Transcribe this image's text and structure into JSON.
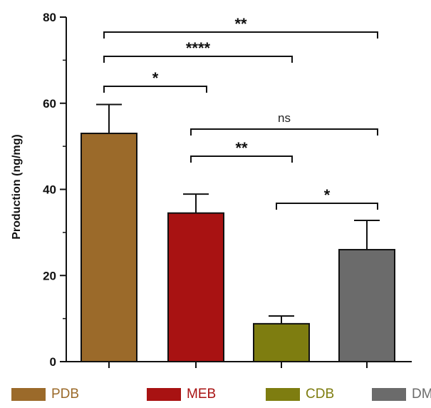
{
  "chart_data": {
    "type": "bar",
    "categories": [
      "PDB",
      "MEB",
      "CDB",
      "DM"
    ],
    "values": [
      53,
      34.5,
      8.8,
      26
    ],
    "errors": [
      6.7,
      4.4,
      1.8,
      6.8
    ],
    "colors": [
      "#9B6A2A",
      "#A81212",
      "#7E7D10",
      "#6B6B6B"
    ],
    "ylabel": "Production (ng/mg)",
    "xlabel": "",
    "title": "",
    "ylim": [
      0,
      80
    ],
    "yticks": [
      "0",
      "20",
      "40",
      "60",
      "80"
    ],
    "grid": false,
    "legend": "bottom",
    "significance": [
      {
        "from": 0,
        "to": 3,
        "label": "**",
        "level": 1
      },
      {
        "from": 0,
        "to": 2,
        "label": "****",
        "level": 2
      },
      {
        "from": 0,
        "to": 1,
        "label": "*",
        "level": 3
      },
      {
        "from": 1,
        "to": 3,
        "label": "ns",
        "level": 4
      },
      {
        "from": 1,
        "to": 2,
        "label": "**",
        "level": 5
      },
      {
        "from": 2,
        "to": 3,
        "label": "*",
        "level": 6
      }
    ]
  }
}
